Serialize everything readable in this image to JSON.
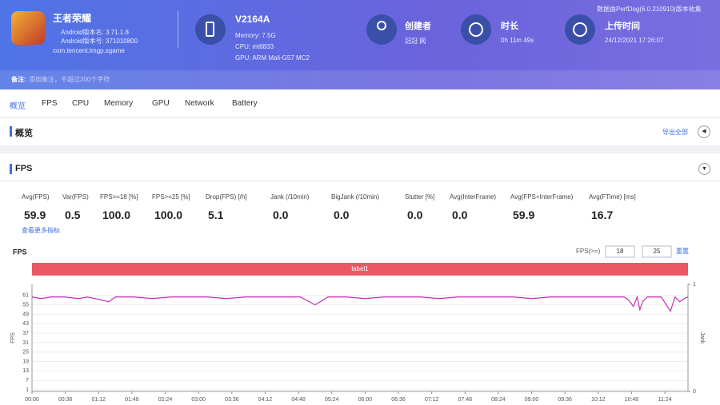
{
  "header": {
    "app_name": "王者荣耀",
    "app_version": "Android版本名: 3.71.1.8",
    "app_code": "Android版本号: 371010800",
    "package": "com.tencent.tmgp.sgame",
    "device": "V2164A",
    "memory": "Memory: 7.5G",
    "cpu": "CPU: mt6833",
    "gpu": "GPU: ARM Mali-G57 MC2",
    "creator_label": "创建者",
    "creator": "冠冠 网",
    "duration_label": "时长",
    "duration": "0h 11m 49s",
    "upload_label": "上传时间",
    "upload_time": "24/12/2021 17:26:07",
    "source_note": "数据由PerfDog(6.0.210910)版本收集",
    "remark_label": "备注:",
    "remark_placeholder": "添加备注，不超过200个字符"
  },
  "tabs": [
    "概览",
    "FPS",
    "CPU",
    "Memory",
    "GPU",
    "Network",
    "Battery"
  ],
  "overview": {
    "title": "概览",
    "export": "导出全部"
  },
  "fps_section": {
    "title": "FPS",
    "metrics": [
      {
        "label": "Avg(FPS)",
        "value": "59.9"
      },
      {
        "label": "Var(FPS)",
        "value": "0.5"
      },
      {
        "label": "FPS>=18 [%]",
        "value": "100.0"
      },
      {
        "label": "FPS>=25 [%]",
        "value": "100.0"
      },
      {
        "label": "Drop(FPS) [/h]",
        "value": "5.1"
      },
      {
        "label": "Jank (/10min)",
        "value": "0.0"
      },
      {
        "label": "BigJank (/10min)",
        "value": "0.0"
      },
      {
        "label": "Stutter [%]",
        "value": "0.0"
      },
      {
        "label": "Avg(InterFrame)",
        "value": "0.0"
      },
      {
        "label": "Avg(FPS+InterFrame)",
        "value": "59.9"
      },
      {
        "label": "Avg(FTime) [ms]",
        "value": "16.7"
      }
    ],
    "more": "查看更多指标"
  },
  "chart_data": {
    "type": "line",
    "title": "FPS",
    "threshold_label": "FPS(>=)",
    "threshold_inputs": [
      "18",
      "25"
    ],
    "reset": "重置",
    "band_label": "label1",
    "y_label": "FPS",
    "y2_label": "Jank",
    "xlim": [
      0,
      709
    ],
    "xticks": [
      {
        "value": 0,
        "label": "00:00"
      },
      {
        "value": 36,
        "label": "00:36"
      },
      {
        "value": 72,
        "label": "01:12"
      },
      {
        "value": 108,
        "label": "01:48"
      },
      {
        "value": 144,
        "label": "02:24"
      },
      {
        "value": 180,
        "label": "03:00"
      },
      {
        "value": 216,
        "label": "03:36"
      },
      {
        "value": 252,
        "label": "04:12"
      },
      {
        "value": 288,
        "label": "04:48"
      },
      {
        "value": 324,
        "label": "05:24"
      },
      {
        "value": 360,
        "label": "06:00"
      },
      {
        "value": 396,
        "label": "06:36"
      },
      {
        "value": 432,
        "label": "07:12"
      },
      {
        "value": 468,
        "label": "07:48"
      },
      {
        "value": 504,
        "label": "08:24"
      },
      {
        "value": 540,
        "label": "09:00"
      },
      {
        "value": 576,
        "label": "09:36"
      },
      {
        "value": 612,
        "label": "10:12"
      },
      {
        "value": 648,
        "label": "10:48"
      },
      {
        "value": 684,
        "label": "11:24"
      }
    ],
    "ylim": [
      0,
      68
    ],
    "yticks": [
      61,
      55,
      49,
      43,
      37,
      31,
      25,
      19,
      13,
      7,
      1
    ],
    "y2lim": [
      0,
      1
    ],
    "y2ticks": [
      1,
      0
    ],
    "grid": true,
    "x": [
      0,
      10,
      20,
      35,
      50,
      60,
      83,
      90,
      110,
      130,
      150,
      170,
      190,
      210,
      230,
      250,
      270,
      290,
      306,
      320,
      340,
      360,
      380,
      400,
      420,
      440,
      460,
      480,
      500,
      520,
      540,
      560,
      580,
      600,
      620,
      640,
      645,
      650,
      654,
      657,
      660,
      665,
      670,
      680,
      690,
      695,
      700,
      705,
      709
    ],
    "series": [
      {
        "name": "FPS",
        "color": "#c62fb5",
        "values": [
          60,
          59,
          60,
          60,
          59,
          60,
          57,
          60,
          60,
          59,
          60,
          60,
          60,
          59,
          60,
          60,
          60,
          60,
          55,
          60,
          60,
          59,
          60,
          60,
          60,
          59,
          60,
          60,
          60,
          60,
          59,
          60,
          60,
          60,
          60,
          60,
          58,
          54,
          60,
          52,
          57,
          60,
          60,
          60,
          51,
          60,
          57,
          59,
          60
        ]
      }
    ]
  }
}
